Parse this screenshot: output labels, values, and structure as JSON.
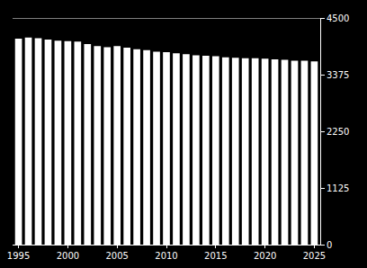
{
  "chart_data": {
    "type": "bar",
    "categories": [
      "1995",
      null,
      null,
      null,
      null,
      "2000",
      null,
      null,
      null,
      null,
      "2005",
      null,
      null,
      null,
      null,
      "2010",
      null,
      null,
      null,
      null,
      "2015",
      null,
      null,
      null,
      null,
      "2020",
      null,
      null,
      null,
      null,
      "2025"
    ],
    "values": [
      4090,
      4110,
      4100,
      4070,
      4050,
      4040,
      4030,
      3980,
      3940,
      3920,
      3940,
      3910,
      3880,
      3860,
      3830,
      3820,
      3800,
      3780,
      3760,
      3750,
      3740,
      3720,
      3710,
      3700,
      3700,
      3690,
      3680,
      3670,
      3650,
      3650,
      3640
    ],
    "color": "#ffffff",
    "ylim": [
      0,
      4500
    ],
    "yticks": [
      0,
      1125,
      2250,
      3375,
      4500
    ],
    "grid": false
  }
}
